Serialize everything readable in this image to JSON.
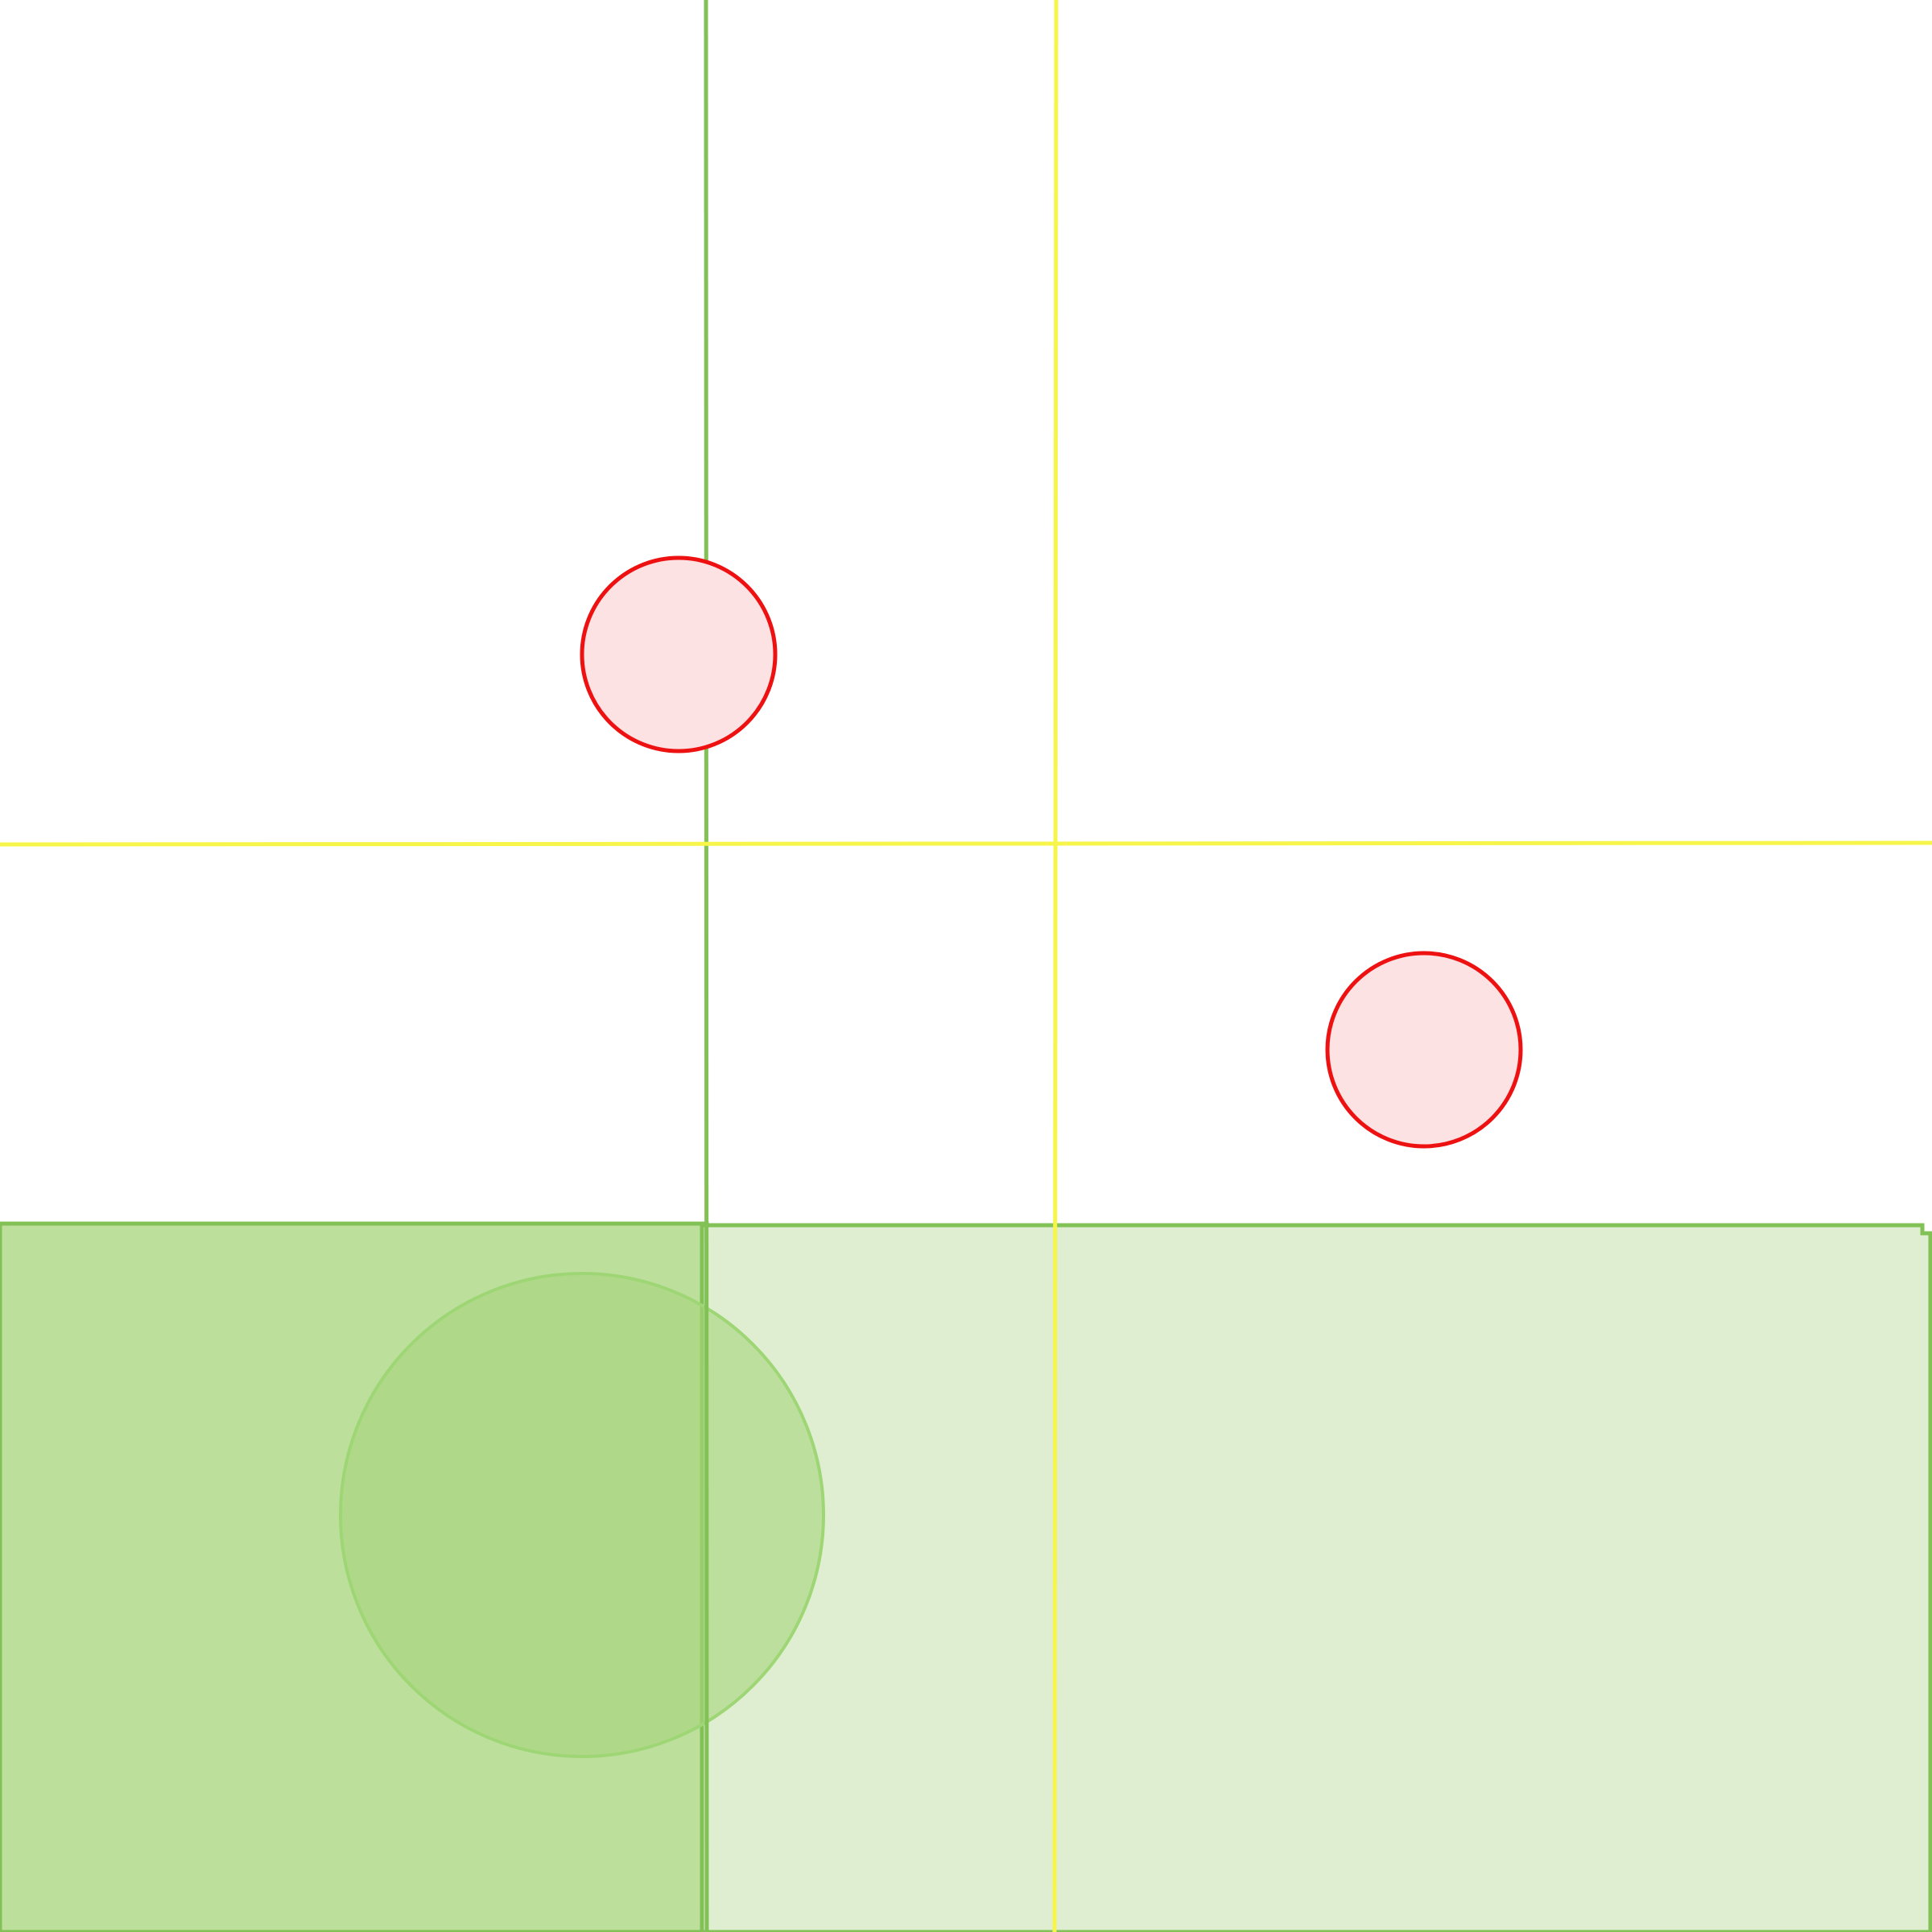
{
  "map": {
    "background_color": "#ffffff",
    "features": {
      "parcels": [
        {
          "name": "parcel-west",
          "fill": "#bcdf9c",
          "stroke": "#82c156"
        },
        {
          "name": "parcel-east",
          "fill": "#dfeed1",
          "stroke": "#82c156"
        }
      ],
      "roads": [
        {
          "name": "road-vertical",
          "color": "#f7f54a"
        },
        {
          "name": "road-horizontal",
          "color": "#f7f54a"
        }
      ],
      "boundaries": [
        {
          "name": "boundary-vertical",
          "color": "#82c156"
        }
      ],
      "zones": [
        {
          "name": "green-zone",
          "fill": "#a6d67b",
          "stroke": "#9fd675"
        }
      ],
      "markers": [
        {
          "name": "marker-north",
          "fill": "#fde2e4",
          "stroke": "#ee1111"
        },
        {
          "name": "marker-east",
          "fill": "#fde2e4",
          "stroke": "#ee1111"
        }
      ]
    }
  }
}
